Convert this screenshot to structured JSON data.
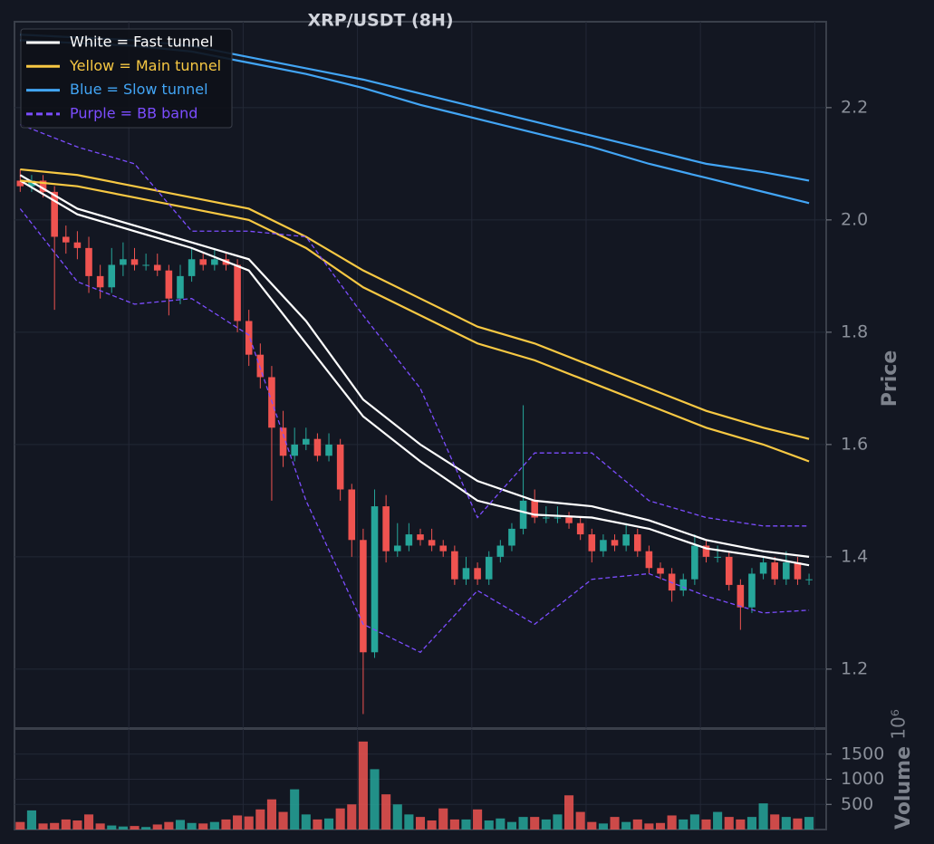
{
  "chart_data": {
    "type": "candlestick",
    "title": "XRP/USDT (8H)",
    "y_label": "Price",
    "up_color": "#26a69a",
    "down_color": "#ef5350",
    "grid": true,
    "legend_position": "upper left",
    "xlim": [
      -0.5,
      70.5
    ],
    "xticks": [
      9.5,
      19.5,
      29.5,
      39.5,
      49.5,
      59.5,
      69.5
    ],
    "ylim": [
      1.095,
      2.353
    ],
    "yticks": [
      1.2,
      1.4,
      1.6,
      1.8,
      {
        "value": 2,
        "label": "2.0"
      },
      2.2
    ],
    "open": [
      2.07,
      2.06,
      2.07,
      2.05,
      1.97,
      1.96,
      1.95,
      1.9,
      1.88,
      1.92,
      1.93,
      1.92,
      1.92,
      1.91,
      1.86,
      1.9,
      1.93,
      1.92,
      1.93,
      1.92,
      1.82,
      1.76,
      1.72,
      1.63,
      1.58,
      1.6,
      1.61,
      1.58,
      1.6,
      1.52,
      1.43,
      1.23,
      1.49,
      1.41,
      1.42,
      1.44,
      1.43,
      1.42,
      1.41,
      1.36,
      1.38,
      1.36,
      1.4,
      1.42,
      1.45,
      1.5,
      1.47,
      1.47,
      1.47,
      1.46,
      1.44,
      1.41,
      1.43,
      1.42,
      1.44,
      1.41,
      1.38,
      1.37,
      1.34,
      1.36,
      1.42,
      1.4,
      1.4,
      1.35,
      1.31,
      1.37,
      1.39,
      1.36,
      1.39,
      1.36
    ],
    "high": [
      2.09,
      2.08,
      2.08,
      2.06,
      1.99,
      1.98,
      1.97,
      1.92,
      1.95,
      1.96,
      1.95,
      1.94,
      1.94,
      1.92,
      1.92,
      1.95,
      1.94,
      1.95,
      1.94,
      1.93,
      1.84,
      1.78,
      1.74,
      1.66,
      1.63,
      1.63,
      1.62,
      1.62,
      1.61,
      1.53,
      1.45,
      1.52,
      1.51,
      1.46,
      1.46,
      1.45,
      1.45,
      1.43,
      1.42,
      1.4,
      1.39,
      1.41,
      1.43,
      1.46,
      1.67,
      1.52,
      1.49,
      1.49,
      1.48,
      1.47,
      1.45,
      1.44,
      1.44,
      1.46,
      1.45,
      1.42,
      1.39,
      1.38,
      1.37,
      1.44,
      1.43,
      1.42,
      1.41,
      1.36,
      1.38,
      1.4,
      1.4,
      1.41,
      1.4,
      1.37
    ],
    "low": [
      2.05,
      2.05,
      2.04,
      1.84,
      1.94,
      1.93,
      1.87,
      1.86,
      1.87,
      1.9,
      1.91,
      1.91,
      1.9,
      1.83,
      1.85,
      1.89,
      1.91,
      1.91,
      1.91,
      1.8,
      1.74,
      1.7,
      1.5,
      1.56,
      1.57,
      1.59,
      1.57,
      1.57,
      1.5,
      1.4,
      1.12,
      1.22,
      1.39,
      1.4,
      1.41,
      1.42,
      1.41,
      1.4,
      1.35,
      1.35,
      1.35,
      1.35,
      1.39,
      1.41,
      1.44,
      1.46,
      1.46,
      1.46,
      1.45,
      1.43,
      1.39,
      1.4,
      1.41,
      1.41,
      1.4,
      1.37,
      1.36,
      1.32,
      1.33,
      1.35,
      1.39,
      1.39,
      1.34,
      1.27,
      1.3,
      1.36,
      1.35,
      1.35,
      1.35,
      1.35
    ],
    "close": [
      2.06,
      2.07,
      2.05,
      1.97,
      1.96,
      1.95,
      1.9,
      1.88,
      1.92,
      1.93,
      1.92,
      1.92,
      1.91,
      1.86,
      1.9,
      1.93,
      1.92,
      1.93,
      1.92,
      1.82,
      1.76,
      1.72,
      1.63,
      1.58,
      1.6,
      1.61,
      1.58,
      1.6,
      1.52,
      1.43,
      1.23,
      1.49,
      1.41,
      1.42,
      1.44,
      1.43,
      1.42,
      1.41,
      1.36,
      1.38,
      1.36,
      1.4,
      1.42,
      1.45,
      1.5,
      1.47,
      1.47,
      1.47,
      1.46,
      1.44,
      1.41,
      1.43,
      1.42,
      1.44,
      1.41,
      1.38,
      1.37,
      1.34,
      1.36,
      1.42,
      1.4,
      1.4,
      1.35,
      1.31,
      1.37,
      1.39,
      1.36,
      1.39,
      1.36,
      1.36
    ],
    "overlays": [
      {
        "name": "White = Fast tunnel",
        "color": "#ffffff",
        "dashed": false,
        "x": [
          0,
          5,
          10,
          15,
          20,
          25,
          30,
          35,
          40,
          45,
          50,
          55,
          60,
          65,
          69
        ],
        "lines": [
          [
            2.08,
            2.02,
            1.99,
            1.96,
            1.93,
            1.82,
            1.68,
            1.6,
            1.535,
            1.5,
            1.49,
            1.465,
            1.43,
            1.41,
            1.4
          ],
          [
            2.07,
            2.01,
            1.98,
            1.95,
            1.91,
            1.78,
            1.65,
            1.57,
            1.5,
            1.475,
            1.47,
            1.45,
            1.415,
            1.4,
            1.385
          ]
        ]
      },
      {
        "name": "Yellow = Main tunnel",
        "color": "#f7c843",
        "dashed": false,
        "x": [
          0,
          5,
          10,
          15,
          20,
          25,
          30,
          35,
          40,
          45,
          50,
          55,
          60,
          65,
          69
        ],
        "lines": [
          [
            2.09,
            2.08,
            2.06,
            2.04,
            2.02,
            1.97,
            1.91,
            1.86,
            1.81,
            1.78,
            1.74,
            1.7,
            1.66,
            1.63,
            1.61
          ],
          [
            2.07,
            2.06,
            2.04,
            2.02,
            2.0,
            1.95,
            1.88,
            1.83,
            1.78,
            1.75,
            1.71,
            1.67,
            1.63,
            1.6,
            1.57
          ]
        ]
      },
      {
        "name": "Blue = Slow tunnel",
        "color": "#42a5f5",
        "dashed": false,
        "x": [
          0,
          5,
          10,
          15,
          20,
          25,
          30,
          35,
          40,
          45,
          50,
          55,
          60,
          65,
          69
        ],
        "lines": [
          [
            2.33,
            2.325,
            2.32,
            2.31,
            2.29,
            2.27,
            2.25,
            2.225,
            2.2,
            2.175,
            2.15,
            2.125,
            2.1,
            2.085,
            2.07
          ],
          [
            2.32,
            2.315,
            2.31,
            2.3,
            2.28,
            2.26,
            2.235,
            2.205,
            2.18,
            2.155,
            2.13,
            2.1,
            2.075,
            2.05,
            2.03
          ]
        ]
      },
      {
        "name": "Purple = BB band",
        "color": "#7c4dff",
        "dashed": true,
        "x": [
          0,
          5,
          10,
          15,
          20,
          25,
          30,
          35,
          40,
          45,
          50,
          55,
          60,
          65,
          69
        ],
        "lines": [
          [
            2.17,
            2.13,
            2.1,
            1.98,
            1.98,
            1.97,
            1.83,
            1.7,
            1.47,
            1.585,
            1.585,
            1.5,
            1.47,
            1.455,
            1.455
          ],
          [
            2.02,
            1.89,
            1.85,
            1.86,
            1.795,
            1.5,
            1.28,
            1.23,
            1.34,
            1.28,
            1.36,
            1.37,
            1.33,
            1.3,
            1.305
          ]
        ]
      }
    ],
    "volume": {
      "y_label": "Volume",
      "offset_label": "10⁶",
      "ylim": [
        0,
        2000
      ],
      "yticks": [
        500,
        1000,
        1500
      ],
      "values": [
        150,
        380,
        120,
        130,
        200,
        180,
        300,
        120,
        80,
        60,
        70,
        50,
        100,
        150,
        190,
        130,
        120,
        150,
        200,
        280,
        260,
        400,
        600,
        350,
        800,
        300,
        200,
        220,
        420,
        500,
        1750,
        1200,
        700,
        500,
        300,
        250,
        180,
        420,
        200,
        200,
        400,
        180,
        220,
        150,
        250,
        250,
        200,
        300,
        680,
        350,
        150,
        120,
        250,
        150,
        200,
        120,
        130,
        280,
        200,
        300,
        200,
        350,
        250,
        200,
        250,
        520,
        300,
        250,
        220,
        250
      ]
    }
  }
}
